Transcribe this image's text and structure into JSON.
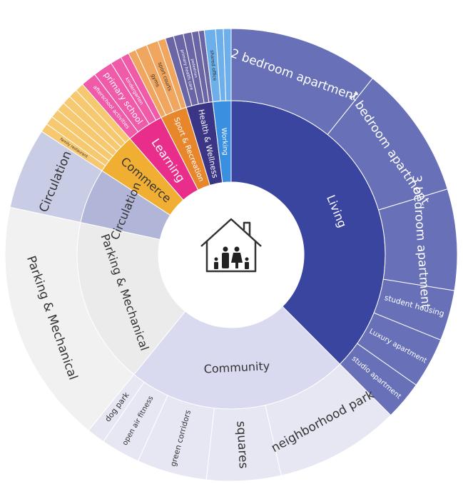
{
  "chart_data": {
    "type": "sunburst",
    "nodes": [
      {
        "name": "Living",
        "color": "#3a45a0",
        "outer_color": "#6870b7",
        "value": 37.5,
        "children": [
          {
            "name": "2 bedroom apartment",
            "value": 10.75
          },
          {
            "name": "1 bedroom apartment",
            "value": 9.53
          },
          {
            "name": "3 bedroom apartment",
            "value": 7.22
          },
          {
            "name": "student housing",
            "value": 3.61
          },
          {
            "name": "Luxury apartment",
            "value": 3.61
          },
          {
            "name": "studio apartment",
            "value": 2.78
          }
        ]
      },
      {
        "name": "Community",
        "color": "#d9d9ef",
        "outer_color": "#e7e7f4",
        "value": 23.3,
        "children": [
          {
            "name": "neighborhood park",
            "value": 8.9
          },
          {
            "name": "squares",
            "value": 5.3
          },
          {
            "name": "green corridors",
            "value": 5.0
          },
          {
            "name": "open air fitness",
            "value": 2.8
          },
          {
            "name": "dog park",
            "value": 1.3
          }
        ]
      },
      {
        "name": "Parking & Mechanical",
        "color": "#ebebeb",
        "outer_color": "#f1f1f1",
        "value": 17.5,
        "children": [
          {
            "name": "Parking & Mechanical",
            "value": 17.5
          }
        ]
      },
      {
        "name": "Circulation",
        "color": "#b1b5d7",
        "outer_color": "#c9cce5",
        "value": 5.8,
        "children": [
          {
            "name": "Circulation",
            "value": 5.8
          }
        ]
      },
      {
        "name": "Commerce",
        "color": "#f0ae32",
        "outer_color": "#f6c86f",
        "value": 4.4,
        "children": [
          {
            "name": "family restaurant",
            "value": 0.63
          },
          {
            "name": null,
            "value": 0.63
          },
          {
            "name": null,
            "value": 0.63
          },
          {
            "name": null,
            "value": 0.63
          },
          {
            "name": null,
            "value": 0.63
          },
          {
            "name": null,
            "value": 0.63
          },
          {
            "name": null,
            "value": 0.62
          }
        ]
      },
      {
        "name": "Learning",
        "color": "#e92d8b",
        "outer_color": "#ef5ba8",
        "value": 3.9,
        "children": [
          {
            "name": "afterschool activities",
            "value": 1.1
          },
          {
            "name": "primary school",
            "value": 1.4
          },
          {
            "name": "kindergarten",
            "value": 0.8
          },
          {
            "name": null,
            "value": 0.6
          }
        ]
      },
      {
        "name": "Sport & Recreation",
        "color": "#e8862b",
        "outer_color": "#f0a65e",
        "value": 2.8,
        "children": [
          {
            "name": null,
            "value": 0.55
          },
          {
            "name": "gyms",
            "value": 0.85
          },
          {
            "name": "sport courts",
            "value": 0.85
          },
          {
            "name": null,
            "value": 0.55
          }
        ]
      },
      {
        "name": "Health & Wellness",
        "color": "#3a3585",
        "outer_color": "#6a66a6",
        "value": 2.8,
        "children": [
          {
            "name": null,
            "value": 0.6
          },
          {
            "name": "primary health care",
            "value": 0.7
          },
          {
            "name": "pedestrian",
            "value": 0.6
          },
          {
            "name": null,
            "value": 0.5
          },
          {
            "name": null,
            "value": 0.4
          }
        ]
      },
      {
        "name": "Working",
        "color": "#3b8fe0",
        "outer_color": "#6cafeb",
        "value": 1.9,
        "children": [
          {
            "name": "shared office",
            "value": 0.8
          },
          {
            "name": null,
            "value": 0.55
          },
          {
            "name": null,
            "value": 0.55
          }
        ]
      }
    ]
  }
}
